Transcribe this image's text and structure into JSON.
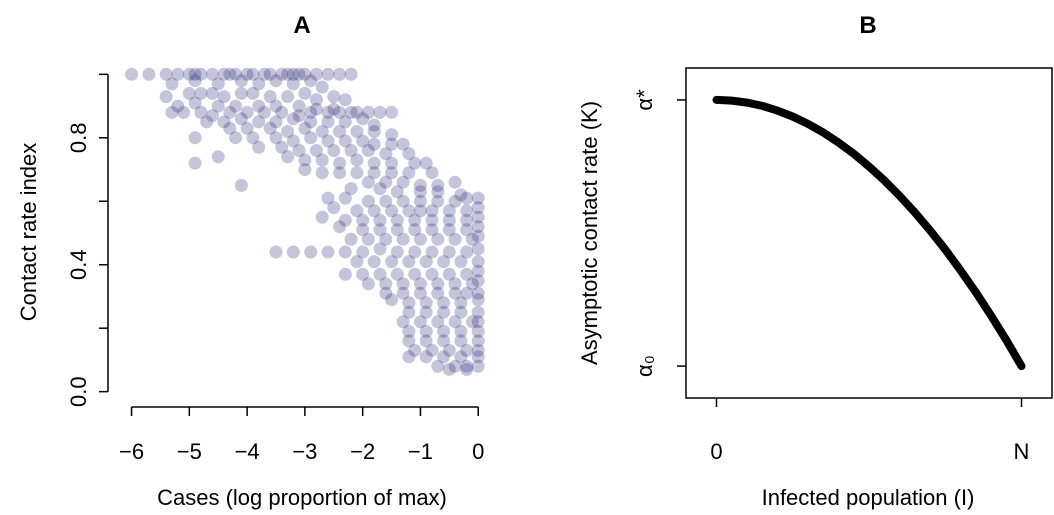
{
  "chart_data": [
    {
      "panel": "A",
      "type": "scatter",
      "title": "A",
      "xlabel": "Cases (log proportion of max)",
      "ylabel": "Contact rate index",
      "xlim": [
        -6.2,
        0.1
      ],
      "ylim": [
        -0.02,
        1.02
      ],
      "xticks": [
        -6,
        -5,
        -4,
        -3,
        -2,
        -1,
        0
      ],
      "xtick_labels": [
        "−6",
        "−5",
        "−4",
        "−3",
        "−2",
        "−1",
        "0"
      ],
      "yticks": [
        0.0,
        0.2,
        0.4,
        0.6,
        0.8,
        1.0
      ],
      "ytick_labels": [
        "0.0",
        "",
        "0.4",
        "",
        "0.8",
        ""
      ],
      "point_color": "#2b2b7a",
      "point_alpha": 0.28,
      "points": [
        [
          -6.0,
          1.0
        ],
        [
          -5.7,
          1.0
        ],
        [
          -5.4,
          1.0
        ],
        [
          -5.2,
          1.0
        ],
        [
          -5.0,
          1.0
        ],
        [
          -4.9,
          1.0
        ],
        [
          -4.8,
          1.0
        ],
        [
          -4.6,
          1.0
        ],
        [
          -4.4,
          1.0
        ],
        [
          -4.3,
          1.0
        ],
        [
          -4.2,
          1.0
        ],
        [
          -4.0,
          1.0
        ],
        [
          -3.9,
          1.0
        ],
        [
          -3.7,
          1.0
        ],
        [
          -3.6,
          1.0
        ],
        [
          -3.4,
          1.0
        ],
        [
          -3.3,
          1.0
        ],
        [
          -3.2,
          1.0
        ],
        [
          -3.1,
          1.0
        ],
        [
          -3.0,
          1.0
        ],
        [
          -2.8,
          1.0
        ],
        [
          -2.6,
          1.0
        ],
        [
          -2.4,
          1.0
        ],
        [
          -2.2,
          1.0
        ],
        [
          -5.3,
          0.97
        ],
        [
          -4.9,
          0.98
        ],
        [
          -4.5,
          0.97
        ],
        [
          -4.1,
          0.98
        ],
        [
          -3.8,
          0.97
        ],
        [
          -3.5,
          0.98
        ],
        [
          -3.2,
          0.97
        ],
        [
          -2.9,
          0.98
        ],
        [
          -2.7,
          0.96
        ],
        [
          -5.4,
          0.93
        ],
        [
          -5.0,
          0.94
        ],
        [
          -4.8,
          0.94
        ],
        [
          -4.6,
          0.94
        ],
        [
          -4.4,
          0.93
        ],
        [
          -4.1,
          0.94
        ],
        [
          -3.9,
          0.94
        ],
        [
          -3.6,
          0.93
        ],
        [
          -3.3,
          0.93
        ],
        [
          -3.0,
          0.94
        ],
        [
          -2.8,
          0.92
        ],
        [
          -2.5,
          0.93
        ],
        [
          -2.3,
          0.92
        ],
        [
          -5.2,
          0.9
        ],
        [
          -4.9,
          0.91
        ],
        [
          -4.5,
          0.9
        ],
        [
          -4.2,
          0.9
        ],
        [
          -3.8,
          0.9
        ],
        [
          -3.5,
          0.9
        ],
        [
          -3.1,
          0.9
        ],
        [
          -2.8,
          0.89
        ],
        [
          -2.5,
          0.89
        ],
        [
          -2.2,
          0.88
        ],
        [
          -5.3,
          0.88
        ],
        [
          -5.1,
          0.88
        ],
        [
          -4.8,
          0.88
        ],
        [
          -4.6,
          0.87
        ],
        [
          -4.3,
          0.88
        ],
        [
          -4.0,
          0.88
        ],
        [
          -3.7,
          0.88
        ],
        [
          -3.4,
          0.88
        ],
        [
          -3.1,
          0.87
        ],
        [
          -2.9,
          0.88
        ],
        [
          -2.6,
          0.88
        ],
        [
          -2.4,
          0.88
        ],
        [
          -2.1,
          0.88
        ],
        [
          -1.9,
          0.88
        ],
        [
          -1.7,
          0.88
        ],
        [
          -1.5,
          0.88
        ],
        [
          -4.7,
          0.85
        ],
        [
          -4.4,
          0.85
        ],
        [
          -4.1,
          0.86
        ],
        [
          -3.8,
          0.85
        ],
        [
          -3.5,
          0.85
        ],
        [
          -3.2,
          0.86
        ],
        [
          -2.9,
          0.85
        ],
        [
          -2.6,
          0.85
        ],
        [
          -2.3,
          0.85
        ],
        [
          -2.0,
          0.86
        ],
        [
          -1.8,
          0.84
        ],
        [
          -4.3,
          0.83
        ],
        [
          -4.0,
          0.83
        ],
        [
          -3.6,
          0.83
        ],
        [
          -3.3,
          0.82
        ],
        [
          -3.0,
          0.83
        ],
        [
          -2.7,
          0.82
        ],
        [
          -2.4,
          0.82
        ],
        [
          -2.1,
          0.82
        ],
        [
          -1.8,
          0.82
        ],
        [
          -1.5,
          0.81
        ],
        [
          -4.9,
          0.8
        ],
        [
          -4.2,
          0.8
        ],
        [
          -3.9,
          0.8
        ],
        [
          -3.5,
          0.8
        ],
        [
          -3.2,
          0.79
        ],
        [
          -2.9,
          0.8
        ],
        [
          -2.6,
          0.79
        ],
        [
          -2.3,
          0.79
        ],
        [
          -2.0,
          0.79
        ],
        [
          -1.8,
          0.78
        ],
        [
          -1.5,
          0.78
        ],
        [
          -1.3,
          0.78
        ],
        [
          -3.8,
          0.77
        ],
        [
          -3.4,
          0.77
        ],
        [
          -3.1,
          0.76
        ],
        [
          -2.8,
          0.76
        ],
        [
          -2.5,
          0.76
        ],
        [
          -2.2,
          0.76
        ],
        [
          -1.9,
          0.76
        ],
        [
          -1.6,
          0.75
        ],
        [
          -1.2,
          0.75
        ],
        [
          -4.5,
          0.74
        ],
        [
          -3.3,
          0.74
        ],
        [
          -3.0,
          0.73
        ],
        [
          -2.7,
          0.73
        ],
        [
          -2.4,
          0.72
        ],
        [
          -2.1,
          0.73
        ],
        [
          -1.8,
          0.72
        ],
        [
          -1.5,
          0.72
        ],
        [
          -1.1,
          0.72
        ],
        [
          -0.9,
          0.72
        ],
        [
          -4.9,
          0.72
        ],
        [
          -3.0,
          0.7
        ],
        [
          -2.7,
          0.69
        ],
        [
          -2.4,
          0.69
        ],
        [
          -2.1,
          0.69
        ],
        [
          -1.8,
          0.69
        ],
        [
          -1.5,
          0.69
        ],
        [
          -1.2,
          0.69
        ],
        [
          -0.8,
          0.69
        ],
        [
          -1.9,
          0.66
        ],
        [
          -1.6,
          0.66
        ],
        [
          -1.3,
          0.66
        ],
        [
          -1.0,
          0.65
        ],
        [
          -0.7,
          0.65
        ],
        [
          -0.4,
          0.66
        ],
        [
          -4.1,
          0.65
        ],
        [
          -2.2,
          0.64
        ],
        [
          -1.7,
          0.64
        ],
        [
          -1.4,
          0.63
        ],
        [
          -1.0,
          0.63
        ],
        [
          -0.7,
          0.63
        ],
        [
          -0.3,
          0.62
        ],
        [
          -2.6,
          0.61
        ],
        [
          -2.3,
          0.61
        ],
        [
          -1.9,
          0.6
        ],
        [
          -1.6,
          0.6
        ],
        [
          -1.3,
          0.6
        ],
        [
          -1.0,
          0.6
        ],
        [
          -0.7,
          0.6
        ],
        [
          -0.4,
          0.6
        ],
        [
          -0.2,
          0.61
        ],
        [
          0.0,
          0.61
        ],
        [
          -2.5,
          0.58
        ],
        [
          -2.1,
          0.57
        ],
        [
          -1.8,
          0.57
        ],
        [
          -1.5,
          0.57
        ],
        [
          -1.2,
          0.57
        ],
        [
          -1.0,
          0.57
        ],
        [
          -0.8,
          0.57
        ],
        [
          -0.5,
          0.57
        ],
        [
          -0.2,
          0.57
        ],
        [
          0.0,
          0.58
        ],
        [
          -2.7,
          0.55
        ],
        [
          -2.3,
          0.54
        ],
        [
          -2.0,
          0.54
        ],
        [
          -1.7,
          0.54
        ],
        [
          -1.4,
          0.54
        ],
        [
          -1.1,
          0.54
        ],
        [
          -0.8,
          0.54
        ],
        [
          -0.5,
          0.54
        ],
        [
          -0.2,
          0.54
        ],
        [
          0.0,
          0.55
        ],
        [
          -2.4,
          0.52
        ],
        [
          -2.0,
          0.51
        ],
        [
          -1.7,
          0.51
        ],
        [
          -1.4,
          0.51
        ],
        [
          -1.1,
          0.51
        ],
        [
          -0.8,
          0.51
        ],
        [
          -0.5,
          0.51
        ],
        [
          -0.2,
          0.51
        ],
        [
          0.0,
          0.52
        ],
        [
          -2.2,
          0.48
        ],
        [
          -1.9,
          0.48
        ],
        [
          -1.6,
          0.48
        ],
        [
          -1.3,
          0.48
        ],
        [
          -1.0,
          0.48
        ],
        [
          -0.7,
          0.48
        ],
        [
          -0.4,
          0.48
        ],
        [
          -0.1,
          0.48
        ],
        [
          0.0,
          0.49
        ],
        [
          -3.5,
          0.44
        ],
        [
          -3.2,
          0.44
        ],
        [
          -2.9,
          0.44
        ],
        [
          -2.6,
          0.44
        ],
        [
          -2.3,
          0.44
        ],
        [
          -2.0,
          0.44
        ],
        [
          -1.7,
          0.45
        ],
        [
          -1.4,
          0.44
        ],
        [
          -1.1,
          0.44
        ],
        [
          -0.8,
          0.44
        ],
        [
          -0.5,
          0.44
        ],
        [
          -0.2,
          0.44
        ],
        [
          0.0,
          0.45
        ],
        [
          -2.1,
          0.41
        ],
        [
          -1.8,
          0.41
        ],
        [
          -1.5,
          0.41
        ],
        [
          -1.2,
          0.41
        ],
        [
          -0.9,
          0.41
        ],
        [
          -0.6,
          0.41
        ],
        [
          -0.3,
          0.41
        ],
        [
          0.0,
          0.41
        ],
        [
          -2.3,
          0.37
        ],
        [
          -2.0,
          0.37
        ],
        [
          -1.7,
          0.37
        ],
        [
          -1.4,
          0.37
        ],
        [
          -1.1,
          0.37
        ],
        [
          -0.8,
          0.37
        ],
        [
          -0.5,
          0.37
        ],
        [
          -0.2,
          0.37
        ],
        [
          0.0,
          0.38
        ],
        [
          -1.9,
          0.34
        ],
        [
          -1.6,
          0.34
        ],
        [
          -1.3,
          0.34
        ],
        [
          -1.0,
          0.34
        ],
        [
          -0.7,
          0.34
        ],
        [
          -0.4,
          0.34
        ],
        [
          -0.1,
          0.34
        ],
        [
          0.0,
          0.35
        ],
        [
          -1.6,
          0.31
        ],
        [
          -1.3,
          0.31
        ],
        [
          -1.0,
          0.31
        ],
        [
          -0.7,
          0.31
        ],
        [
          -0.4,
          0.31
        ],
        [
          -0.2,
          0.31
        ],
        [
          0.0,
          0.31
        ],
        [
          -1.5,
          0.29
        ],
        [
          -1.2,
          0.28
        ],
        [
          -0.9,
          0.28
        ],
        [
          -0.6,
          0.28
        ],
        [
          -0.3,
          0.28
        ],
        [
          0.0,
          0.29
        ],
        [
          -1.2,
          0.25
        ],
        [
          -0.9,
          0.25
        ],
        [
          -0.6,
          0.25
        ],
        [
          -0.3,
          0.25
        ],
        [
          0.0,
          0.25
        ],
        [
          -1.3,
          0.22
        ],
        [
          -1.0,
          0.22
        ],
        [
          -0.7,
          0.22
        ],
        [
          -0.4,
          0.22
        ],
        [
          -0.1,
          0.22
        ],
        [
          0.0,
          0.22
        ],
        [
          -1.2,
          0.19
        ],
        [
          -0.9,
          0.19
        ],
        [
          -0.6,
          0.19
        ],
        [
          -0.3,
          0.19
        ],
        [
          0.0,
          0.19
        ],
        [
          -1.2,
          0.16
        ],
        [
          -0.9,
          0.16
        ],
        [
          -0.6,
          0.16
        ],
        [
          -0.3,
          0.16
        ],
        [
          0.0,
          0.16
        ],
        [
          -1.1,
          0.13
        ],
        [
          -0.8,
          0.13
        ],
        [
          -0.5,
          0.13
        ],
        [
          -0.2,
          0.13
        ],
        [
          0.0,
          0.13
        ],
        [
          -1.2,
          0.11
        ],
        [
          -0.9,
          0.11
        ],
        [
          -0.6,
          0.11
        ],
        [
          -0.3,
          0.11
        ],
        [
          0.0,
          0.11
        ],
        [
          -0.7,
          0.08
        ],
        [
          -0.4,
          0.08
        ],
        [
          -0.2,
          0.08
        ],
        [
          0.0,
          0.08
        ],
        [
          -0.5,
          0.07
        ],
        [
          -0.2,
          0.07
        ]
      ]
    },
    {
      "panel": "B",
      "type": "line",
      "title": "B",
      "xlabel": "Infected population (I)",
      "ylabel": "Asymptotic contact rate (K)",
      "xlim": [
        -0.1,
        1.1
      ],
      "ylim": [
        -0.12,
        1.12
      ],
      "xtick_labels": [
        "0",
        "N"
      ],
      "ytick_labels": [
        "α₀",
        "α*"
      ],
      "line_color": "#000000",
      "x": [
        0,
        0.05,
        0.1,
        0.15,
        0.2,
        0.25,
        0.3,
        0.35,
        0.4,
        0.45,
        0.5,
        0.55,
        0.6,
        0.65,
        0.7,
        0.75,
        0.8,
        0.85,
        0.9,
        0.95,
        1.0
      ],
      "y": [
        1.0,
        0.9975,
        0.99,
        0.9775,
        0.96,
        0.9375,
        0.91,
        0.8775,
        0.84,
        0.7975,
        0.75,
        0.6975,
        0.64,
        0.5775,
        0.51,
        0.4375,
        0.36,
        0.2775,
        0.19,
        0.0975,
        0.0
      ]
    }
  ]
}
